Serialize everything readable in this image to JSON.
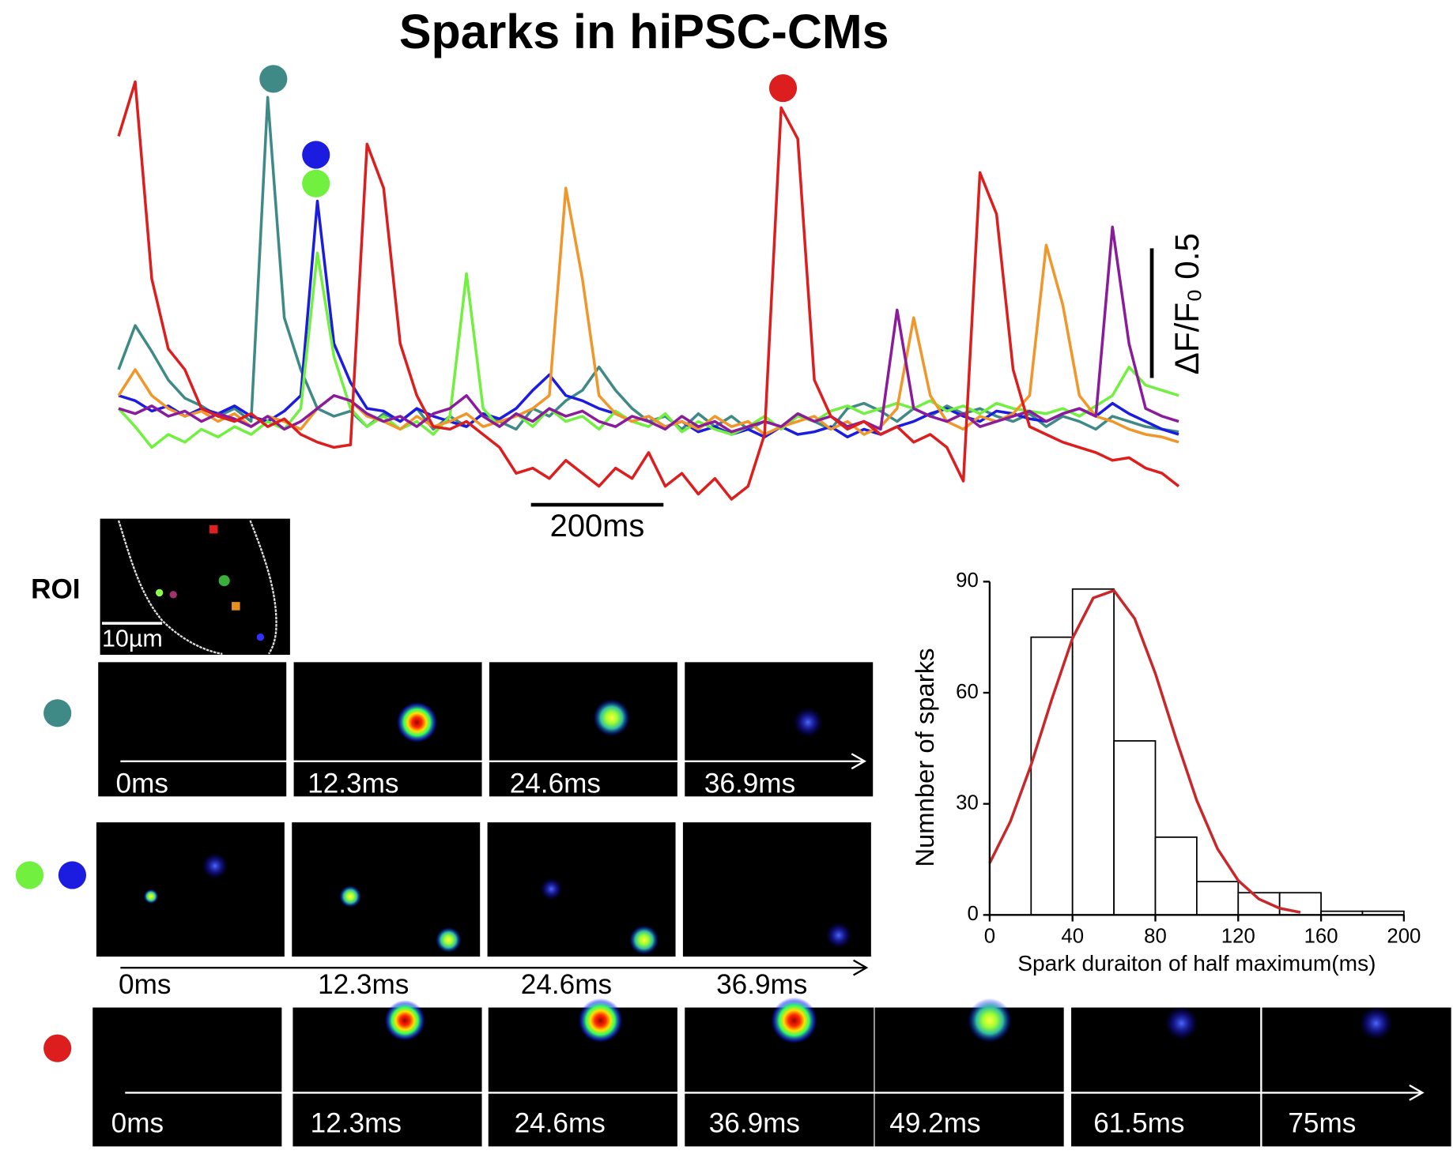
{
  "title": "Sparks in hiPSC-CMs",
  "panels": {
    "roi_label": "ROI",
    "roi_scale": "10µm",
    "rows": [
      [
        "0ms",
        "12.3ms",
        "24.6ms",
        "36.9ms"
      ],
      [
        "0ms",
        "12.3ms",
        "24.6ms",
        "36.9ms"
      ],
      [
        "0ms",
        "12.3ms",
        "24.6ms",
        "36.9ms",
        "49.2ms",
        "61.5ms",
        "75ms"
      ]
    ]
  },
  "chart_data": [
    {
      "type": "line",
      "x": [
        0,
        25,
        50,
        75,
        100,
        125,
        150,
        175,
        200,
        225,
        250,
        275,
        300,
        325,
        350,
        375,
        400,
        425,
        450,
        475,
        500,
        525,
        550,
        575,
        600,
        625,
        650,
        675,
        700,
        725,
        750,
        775,
        800,
        825,
        850,
        875,
        900,
        925,
        950,
        975,
        1000,
        1025,
        1050,
        1075,
        1100,
        1125,
        1150,
        1175,
        1200,
        1225,
        1250,
        1275,
        1300,
        1325,
        1350,
        1375,
        1400,
        1425,
        1450,
        1475,
        1500,
        1525,
        1550,
        1575,
        1600
      ],
      "xlim": [
        0,
        1600
      ],
      "ylim": [
        -0.35,
        1.35
      ],
      "x_scale_bar": {
        "value": 200,
        "label": "200ms"
      },
      "y_scale_bar": {
        "value": 0.5,
        "label": "ΔF/F₀ 0.5"
      },
      "series": [
        {
          "color": "#3f8a86",
          "values": [
            0.2,
            0.37,
            0.27,
            0.16,
            0.09,
            0.06,
            0.02,
            0.05,
            0.0,
            1.25,
            0.4,
            0.2,
            0.05,
            0.02,
            0.04,
            -0.02,
            0.03,
            0.0,
            0.05,
            -0.03,
            0.02,
            -0.02,
            0.03,
            0.0,
            -0.03,
            0.05,
            0.02,
            0.08,
            0.12,
            0.21,
            0.12,
            0.05,
            0.0,
            0.02,
            -0.03,
            0.03,
            -0.02,
            0.02,
            -0.03,
            0.0,
            -0.02,
            0.03,
            0.0,
            -0.03,
            0.05,
            0.07,
            0.04,
            0.0,
            0.05,
            0.02,
            0.06,
            0.03,
            0.05,
            0.02,
            0.0,
            0.03,
            -0.02,
            0.02,
            0.0,
            -0.03,
            0.02,
            0.0,
            -0.02,
            -0.03,
            -0.04
          ]
        },
        {
          "color": "#1c1ce0",
          "values": [
            0.1,
            0.08,
            0.04,
            0.06,
            0.02,
            0.05,
            0.03,
            0.06,
            0.02,
            0.0,
            0.04,
            0.1,
            0.85,
            0.3,
            0.15,
            0.05,
            0.04,
            0.0,
            0.05,
            0.02,
            0.0,
            -0.02,
            0.03,
            0.01,
            0.05,
            0.12,
            0.18,
            0.1,
            0.08,
            0.05,
            0.03,
            0.0,
            0.02,
            -0.02,
            0.0,
            -0.04,
            -0.02,
            -0.05,
            -0.03,
            -0.06,
            -0.02,
            -0.05,
            -0.04,
            -0.02,
            -0.06,
            -0.03,
            -0.05,
            -0.02,
            0.0,
            0.03,
            0.05,
            0.02,
            0.0,
            0.04,
            0.03,
            0.01,
            0.0,
            0.03,
            0.05,
            0.02,
            0.07,
            0.03,
            0.0,
            -0.03,
            -0.05
          ]
        },
        {
          "color": "#72f040",
          "values": [
            0.05,
            -0.02,
            -0.1,
            -0.05,
            -0.08,
            -0.03,
            -0.06,
            -0.02,
            -0.05,
            0.0,
            -0.03,
            0.05,
            0.65,
            0.25,
            0.05,
            -0.02,
            0.02,
            -0.03,
            0.0,
            -0.05,
            0.02,
            0.57,
            0.05,
            -0.02,
            0.03,
            -0.02,
            0.05,
            0.0,
            0.02,
            -0.03,
            0.04,
            0.0,
            -0.02,
            0.03,
            -0.04,
            0.0,
            -0.03,
            -0.05,
            -0.02,
            0.02,
            -0.03,
            0.02,
            0.0,
            0.04,
            0.06,
            0.03,
            0.05,
            0.07,
            0.05,
            0.08,
            0.04,
            0.06,
            0.03,
            0.07,
            0.05,
            0.04,
            0.03,
            0.05,
            0.02,
            0.06,
            0.1,
            0.21,
            0.14,
            0.12,
            0.1
          ]
        },
        {
          "color": "#f0962a",
          "values": [
            0.1,
            0.2,
            0.1,
            0.05,
            0.02,
            0.04,
            0.0,
            0.03,
            -0.02,
            0.02,
            0.0,
            -0.03,
            0.05,
            0.1,
            0.08,
            0.02,
            0.0,
            -0.03,
            0.02,
            -0.02,
            0.0,
            0.03,
            -0.02,
            0.0,
            0.02,
            0.05,
            0.1,
            0.9,
            0.55,
            0.1,
            0.03,
            0.0,
            0.02,
            -0.02,
            0.0,
            -0.03,
            0.02,
            -0.02,
            0.0,
            -0.05,
            -0.02,
            0.0,
            0.02,
            -0.03,
            0.0,
            -0.05,
            -0.02,
            0.05,
            0.4,
            0.1,
            0.0,
            -0.03,
            0.02,
            0.0,
            0.03,
            0.1,
            0.68,
            0.45,
            0.1,
            0.02,
            0.0,
            -0.03,
            -0.05,
            -0.06,
            -0.08
          ]
        },
        {
          "color": "#8a1c9c",
          "values": [
            0.05,
            0.03,
            0.06,
            0.02,
            0.04,
            0.0,
            0.03,
            0.01,
            -0.02,
            0.02,
            -0.03,
            0.0,
            0.05,
            0.1,
            0.08,
            0.03,
            0.0,
            0.02,
            -0.02,
            0.03,
            0.05,
            0.1,
            0.02,
            -0.02,
            0.03,
            0.0,
            0.05,
            0.02,
            0.04,
            0.0,
            -0.02,
            0.02,
            0.0,
            -0.03,
            0.02,
            -0.02,
            0.0,
            -0.04,
            -0.02,
            0.0,
            -0.02,
            0.03,
            0.0,
            0.02,
            -0.02,
            0.0,
            -0.03,
            0.43,
            0.05,
            0.02,
            0.0,
            0.03,
            -0.02,
            0.0,
            0.02,
            0.04,
            0.0,
            0.03,
            0.05,
            0.02,
            0.75,
            0.3,
            0.05,
            0.02,
            0.0
          ]
        },
        {
          "color": "#dc1e1e",
          "values": [
            1.1,
            1.31,
            0.55,
            0.28,
            0.2,
            0.05,
            0.02,
            0.0,
            0.03,
            -0.02,
            0.01,
            -0.05,
            -0.08,
            -0.1,
            -0.09,
            1.07,
            0.9,
            0.3,
            0.1,
            -0.02,
            -0.03,
            0.0,
            -0.05,
            -0.1,
            -0.2,
            -0.18,
            -0.22,
            -0.15,
            -0.2,
            -0.25,
            -0.18,
            -0.22,
            -0.12,
            -0.25,
            -0.2,
            -0.28,
            -0.22,
            -0.3,
            -0.25,
            -0.05,
            1.21,
            1.09,
            0.16,
            0.02,
            -0.03,
            0.0,
            -0.05,
            -0.02,
            -0.08,
            -0.05,
            -0.1,
            -0.23,
            0.96,
            0.8,
            0.2,
            -0.02,
            -0.05,
            -0.08,
            -0.1,
            -0.12,
            -0.15,
            -0.14,
            -0.18,
            -0.2,
            -0.25
          ]
        }
      ]
    },
    {
      "type": "histogram",
      "xlabel": "Spark duraiton of half maximum(ms)",
      "ylabel": "Numnber of sparks",
      "bins": [
        20,
        40,
        60,
        80,
        100,
        120,
        140,
        160,
        180,
        200
      ],
      "values": [
        75,
        88,
        47,
        21,
        9,
        6,
        6,
        1,
        1
      ],
      "color": "#000000",
      "fit": {
        "color": "#c8282a",
        "x": [
          0,
          10,
          20,
          30,
          40,
          50,
          60,
          70,
          80,
          90,
          100,
          110,
          120,
          130,
          140,
          150
        ],
        "values": [
          14.0,
          25.2,
          40.5,
          58.2,
          74.7,
          85.6,
          87.6,
          80.0,
          65.2,
          47.5,
          30.9,
          17.9,
          9.3,
          4.3,
          1.8,
          0.7
        ]
      },
      "xlim": [
        0,
        200
      ],
      "ylim": [
        0,
        90
      ],
      "xticks": [
        0,
        40,
        80,
        120,
        160,
        200
      ],
      "yticks": [
        0,
        30,
        60,
        90
      ]
    }
  ]
}
